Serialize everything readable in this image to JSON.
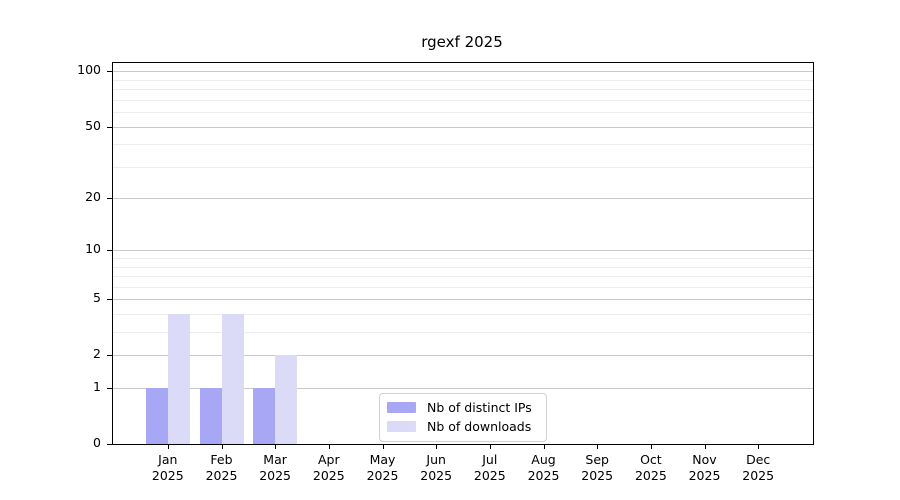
{
  "chart_data": {
    "type": "bar",
    "title": "rgexf 2025",
    "categories": [
      "Jan",
      "Feb",
      "Mar",
      "Apr",
      "May",
      "Jun",
      "Jul",
      "Aug",
      "Sep",
      "Oct",
      "Nov",
      "Dec"
    ],
    "x_tick_line2": "2025",
    "series": [
      {
        "name": "Nb of distinct IPs",
        "color": "#a7a7f5",
        "values": [
          1,
          1,
          1,
          0,
          0,
          0,
          0,
          0,
          0,
          0,
          0,
          0
        ]
      },
      {
        "name": "Nb of downloads",
        "color": "#dbdbf8",
        "values": [
          4,
          4,
          2,
          0,
          0,
          0,
          0,
          0,
          0,
          0,
          0,
          0
        ]
      }
    ],
    "y_scale": "log1p",
    "ylim": [
      0,
      111
    ],
    "y_major_ticks": [
      100,
      50,
      20,
      10,
      5,
      2,
      1,
      0
    ],
    "y_minor_gridlines": [
      90,
      80,
      70,
      60,
      40,
      30,
      9,
      8,
      7,
      6,
      4,
      3
    ],
    "grid": "horizontal",
    "legend_position": "lower center"
  },
  "colors": {
    "major_grid": "#c9c9c9",
    "minor_grid": "#ececec",
    "spine": "#000000",
    "text": "#000000",
    "legend_border": "#d2d2d2",
    "background": "#ffffff"
  }
}
